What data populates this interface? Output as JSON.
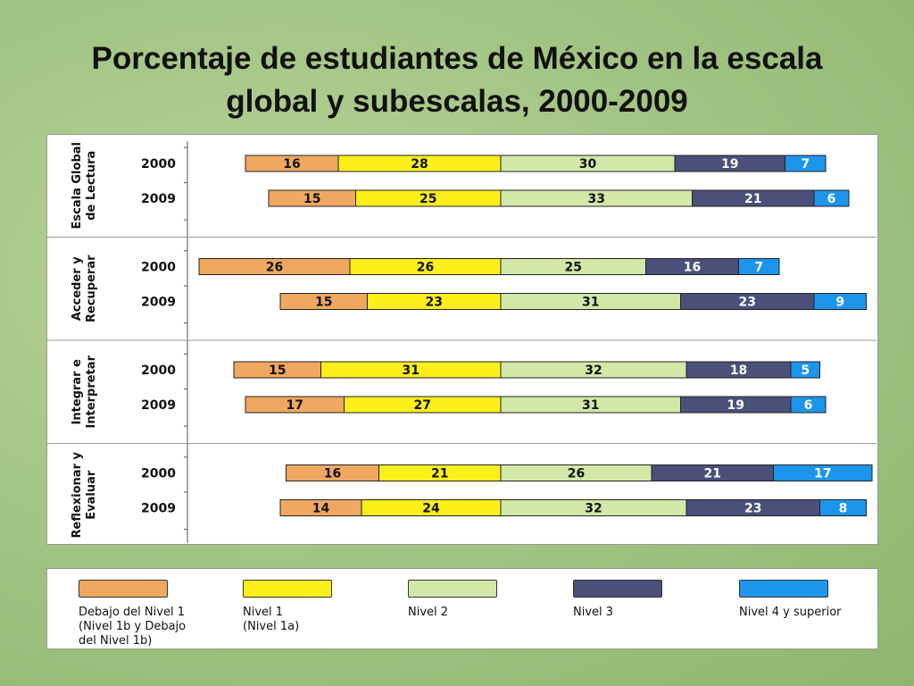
{
  "title": "Porcentaje de estudiantes de México en la escala global y subescalas, 2000-2009",
  "chart_data": {
    "type": "bar",
    "orientation": "horizontal",
    "stacked": true,
    "diverging": true,
    "series": [
      {
        "name": "Debajo del Nivel 1\n(Nivel 1b y Debajo\n del Nivel 1b)",
        "color": "#f0a860"
      },
      {
        "name": "Nivel 1\n(Nivel 1a)",
        "color": "#fcef1a"
      },
      {
        "name": "Nivel 2",
        "color": "#d3e8a8"
      },
      {
        "name": "Nivel 3",
        "color": "#4a5079"
      },
      {
        "name": "Nivel 4 y superior",
        "color": "#1e95ec"
      }
    ],
    "groups": [
      {
        "label": "Escala Global\nde Lectura",
        "rows": [
          {
            "year": "2000",
            "values": [
              16,
              28,
              30,
              19,
              7
            ]
          },
          {
            "year": "2009",
            "values": [
              15,
              25,
              33,
              21,
              6
            ]
          }
        ]
      },
      {
        "label": "Acceder y\nRecuperar",
        "rows": [
          {
            "year": "2000",
            "values": [
              26,
              26,
              25,
              16,
              7
            ]
          },
          {
            "year": "2009",
            "values": [
              15,
              23,
              31,
              23,
              9
            ]
          }
        ]
      },
      {
        "label": "Integrar e\nInterpretar",
        "rows": [
          {
            "year": "2000",
            "values": [
              15,
              31,
              32,
              18,
              5
            ]
          },
          {
            "year": "2009",
            "values": [
              17,
              27,
              31,
              19,
              6
            ]
          }
        ]
      },
      {
        "label": "Reflexionar y\nEvaluar",
        "rows": [
          {
            "year": "2000",
            "values": [
              16,
              21,
              26,
              21,
              17
            ]
          },
          {
            "year": "2009",
            "values": [
              14,
              24,
              32,
              23,
              8
            ]
          }
        ]
      }
    ]
  }
}
